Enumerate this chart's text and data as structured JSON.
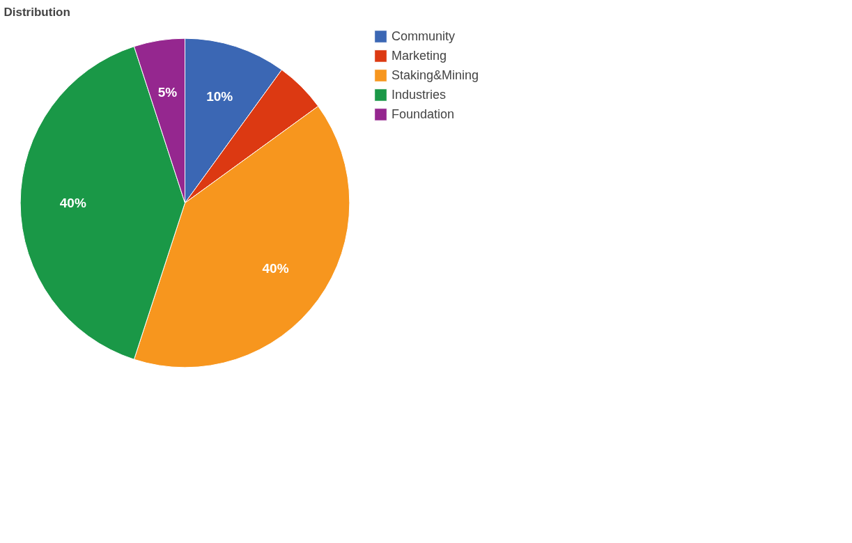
{
  "chart_data": {
    "type": "pie",
    "title": "Distribution",
    "categories": [
      "Community",
      "Marketing",
      "Staking&Mining",
      "Industries",
      "Foundation"
    ],
    "values": [
      10,
      5,
      40,
      40,
      5
    ],
    "colors": [
      "#3b67b4",
      "#dc3912",
      "#f7961e",
      "#1a9847",
      "#95278f"
    ],
    "value_labels": [
      "10%",
      null,
      "40%",
      "40%",
      "5%"
    ],
    "legend": "right"
  }
}
